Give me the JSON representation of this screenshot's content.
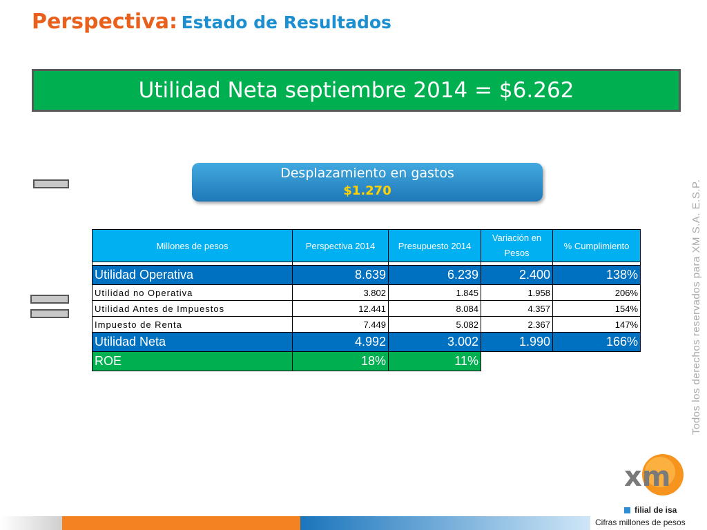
{
  "title": {
    "prefix": "Perspectiva:",
    "main": "Estado de Resultados"
  },
  "banner": {
    "text": "Utilidad Neta septiembre 2014 = $6.262"
  },
  "pill": {
    "line1": "Desplazamiento en gastos",
    "line2": "$1.270"
  },
  "table": {
    "headers": [
      "Millones de pesos",
      "Perspectiva 2014",
      "Presupuesto 2014",
      "Variación en Pesos",
      "% Cumplimiento"
    ],
    "rows": [
      {
        "label": "Utilidad Operativa",
        "perspectiva": "8.639",
        "presupuesto": "6.239",
        "variacion": "2.400",
        "cumplimiento": "138%"
      },
      {
        "label": "Utilidad no Operativa",
        "perspectiva": "3.802",
        "presupuesto": "1.845",
        "variacion": "1.958",
        "cumplimiento": "206%"
      },
      {
        "label": "Utilidad Antes de Impuestos",
        "perspectiva": "12.441",
        "presupuesto": "8.084",
        "variacion": "4.357",
        "cumplimiento": "154%"
      },
      {
        "label": "Impuesto de Renta",
        "perspectiva": "7.449",
        "presupuesto": "5.082",
        "variacion": "2.367",
        "cumplimiento": "147%"
      },
      {
        "label": "Utilidad Neta",
        "perspectiva": "4.992",
        "presupuesto": "3.002",
        "variacion": "1.990",
        "cumplimiento": "166%"
      },
      {
        "label": "ROE",
        "perspectiva": "18%",
        "presupuesto": "11%"
      }
    ]
  },
  "sidebar_text": "Todos los derechos reservados para XM S.A. E.S.P.",
  "logo": {
    "text": "xm",
    "sub": "filial de isa"
  },
  "footer_note": "Cifras millones de pesos",
  "colors": {
    "orange": "#e8601c",
    "blue": "#1b8fd0",
    "green": "#00b050",
    "table_header": "#00b0f0",
    "table_major": "#0070c0"
  }
}
